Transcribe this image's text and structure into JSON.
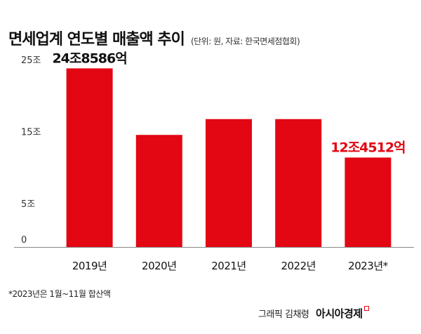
{
  "header": {
    "title": "면세업계 연도별 매출액 추이",
    "subtitle": "(단위: 원, 자료: 한국면세점협회)"
  },
  "chart_data": {
    "type": "bar",
    "categories": [
      "2019년",
      "2020년",
      "2021년",
      "2022년",
      "2023년*"
    ],
    "values": [
      24.86,
      15.6,
      17.8,
      17.8,
      12.45
    ],
    "y_ticks": [
      {
        "value": 25,
        "label": "25조"
      },
      {
        "value": 15,
        "label": "15조"
      },
      {
        "value": 5,
        "label": "5조"
      },
      {
        "value": 0,
        "label": "0"
      }
    ],
    "ylim": [
      0,
      25
    ],
    "data_labels": [
      {
        "index": 0,
        "text": "24조8586억",
        "color": "#111111"
      },
      {
        "index": 4,
        "text": "12조4512억",
        "color": "#e30613"
      }
    ],
    "grid": false,
    "bar_color": "#e30613"
  },
  "footnote": "*2023년은 1월~11월 합산액",
  "credit": {
    "text": "그래픽 김채령",
    "brand": "아시아경제"
  }
}
